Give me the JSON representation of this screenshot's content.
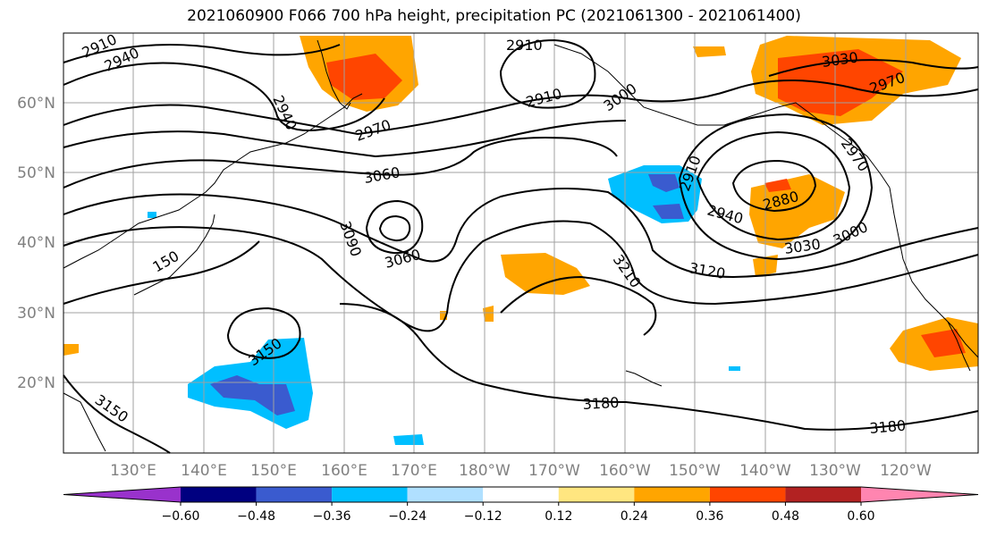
{
  "title": "2021060900 F066 700 hPa height, precipitation PC (2021061300 - 2021061400)",
  "lat_labels": [
    "60°N",
    "50°N",
    "40°N",
    "30°N",
    "20°N"
  ],
  "lon_labels": [
    "130°E",
    "140°E",
    "150°E",
    "160°E",
    "170°E",
    "180°W",
    "170°W",
    "160°W",
    "150°W",
    "140°W",
    "130°W",
    "120°W"
  ],
  "contour_labels": [
    "2910",
    "2940",
    "2910",
    "2940",
    "2910",
    "3000",
    "3030",
    "2970",
    "2970",
    "3060",
    "2910",
    "2880",
    "2940",
    "3000",
    "3090",
    "3060",
    "3030",
    "3120",
    "3210",
    "150",
    "3150",
    "3150",
    "3180",
    "3180",
    "2970"
  ],
  "colorbar": {
    "colors": [
      "#9932cc",
      "#000080",
      "#3a5bcf",
      "#00bfff",
      "#b0e0ff",
      "#ffffff",
      "#ffe680",
      "#ffa500",
      "#ff4500",
      "#b22222",
      "#ff85b0"
    ],
    "ticks": [
      "−0.60",
      "−0.48",
      "−0.36",
      "−0.24",
      "−0.12",
      "0.12",
      "0.24",
      "0.36",
      "0.48",
      "0.60"
    ]
  }
}
